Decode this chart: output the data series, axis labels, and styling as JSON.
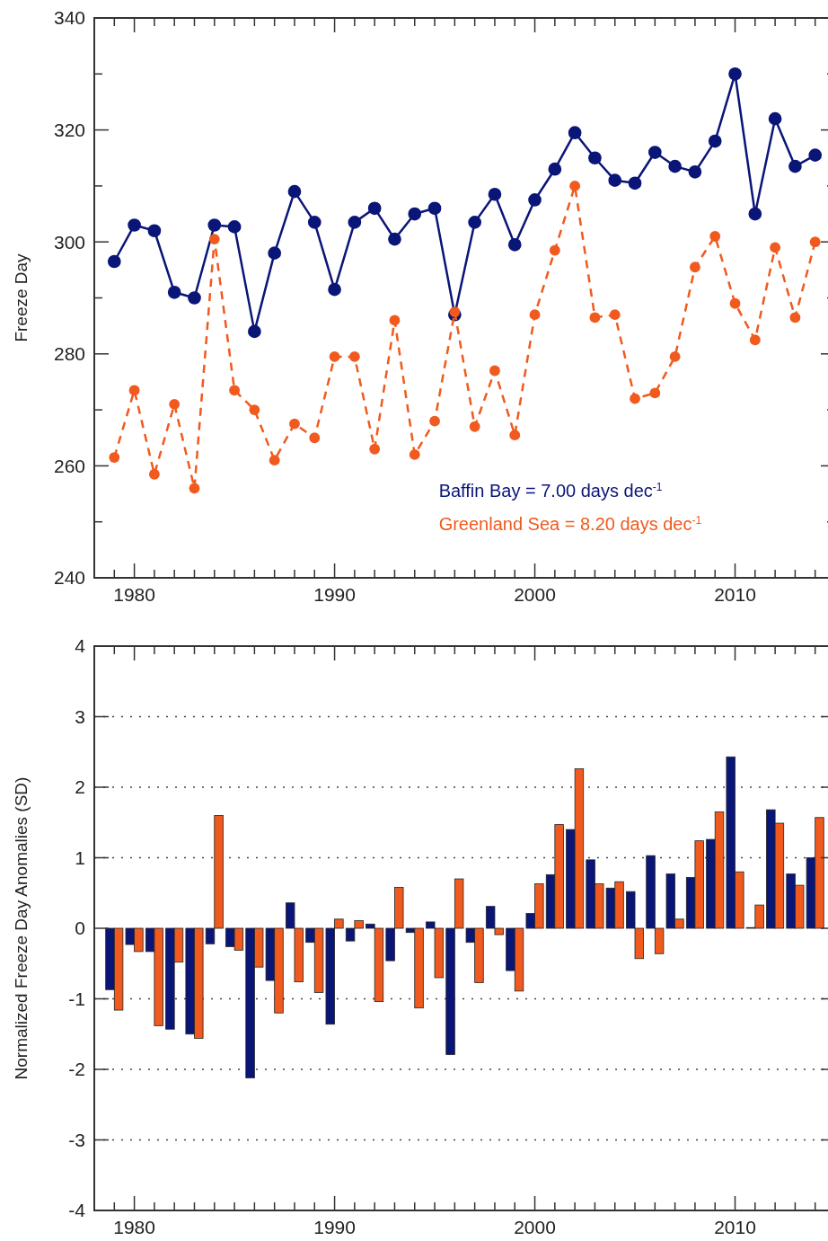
{
  "chart_data": [
    {
      "type": "line",
      "ylabel": "Freeze Day",
      "marker": "circle",
      "legend": "bottom right",
      "x": [
        1979,
        1980,
        1981,
        1982,
        1983,
        1984,
        1985,
        1986,
        1987,
        1988,
        1989,
        1990,
        1991,
        1992,
        1993,
        1994,
        1995,
        1996,
        1997,
        1998,
        1999,
        2000,
        2001,
        2002,
        2003,
        2004,
        2005,
        2006,
        2007,
        2008,
        2009,
        2010,
        2011,
        2012,
        2013,
        2014
      ],
      "series": [
        {
          "name": "Baffin Bay = 7.00 days dec$^{-1}$",
          "color": "#0a1578",
          "line_style": "solid",
          "values": [
            296.5,
            303,
            302,
            291,
            290,
            303,
            302.7,
            284,
            298,
            309,
            303.5,
            291.5,
            303.5,
            306,
            300.5,
            305,
            306,
            287,
            303.5,
            308.5,
            299.5,
            307.5,
            313,
            319.5,
            315,
            311,
            310.5,
            316,
            313.5,
            312.5,
            318,
            330,
            305,
            322,
            313.5,
            315.5
          ]
        },
        {
          "name": "Greenland Sea = 8.20 days dec$^{-1}$",
          "color": "#f05a1e",
          "line_style": "dashed",
          "values": [
            261.5,
            273.5,
            258.5,
            271,
            256,
            300.5,
            273.5,
            270,
            261,
            267.5,
            265,
            279.5,
            279.5,
            263,
            286,
            262,
            268,
            287.5,
            267,
            277,
            265.5,
            287,
            298.5,
            310,
            286.5,
            287,
            272,
            273,
            279.5,
            295.5,
            301,
            289,
            282.5,
            299,
            286.5,
            300
          ]
        }
      ],
      "xlim": [
        1978,
        2015
      ],
      "xticks": [
        {
          "value": 1978,
          "label": null
        },
        {
          "value": 1979,
          "label": null
        },
        1980,
        {
          "value": 1981,
          "label": null
        },
        {
          "value": 1982,
          "label": null
        },
        {
          "value": 1983,
          "label": null
        },
        {
          "value": 1984,
          "label": null
        },
        {
          "value": 1985,
          "label": null
        },
        {
          "value": 1986,
          "label": null
        },
        {
          "value": 1987,
          "label": null
        },
        {
          "value": 1988,
          "label": null
        },
        {
          "value": 1989,
          "label": null
        },
        1990,
        {
          "value": 1991,
          "label": null
        },
        {
          "value": 1992,
          "label": null
        },
        {
          "value": 1993,
          "label": null
        },
        {
          "value": 1994,
          "label": null
        },
        {
          "value": 1995,
          "label": null
        },
        {
          "value": 1996,
          "label": null
        },
        {
          "value": 1997,
          "label": null
        },
        {
          "value": 1998,
          "label": null
        },
        {
          "value": 1999,
          "label": null
        },
        2000,
        {
          "value": 2001,
          "label": null
        },
        {
          "value": 2002,
          "label": null
        },
        {
          "value": 2003,
          "label": null
        },
        {
          "value": 2004,
          "label": null
        },
        {
          "value": 2005,
          "label": null
        },
        {
          "value": 2006,
          "label": null
        },
        {
          "value": 2007,
          "label": null
        },
        {
          "value": 2008,
          "label": null
        },
        {
          "value": 2009,
          "label": null
        },
        2010,
        {
          "value": 2011,
          "label": null
        },
        {
          "value": 2012,
          "label": null
        },
        {
          "value": 2013,
          "label": null
        },
        {
          "value": 2014,
          "label": null
        }
      ],
      "ylim": [
        240,
        340
      ],
      "yticks": [
        240,
        {
          "value": 250,
          "label": null
        },
        260,
        {
          "value": 270,
          "label": null
        },
        280,
        {
          "value": 290,
          "label": null
        },
        300,
        {
          "value": 310,
          "label": null
        },
        320,
        {
          "value": 330,
          "label": null
        },
        340
      ]
    },
    {
      "type": "bar",
      "ylabel": "Normalized Freeze Day Anomalies (SD)",
      "x": [
        1979,
        1980,
        1981,
        1982,
        1983,
        1984,
        1985,
        1986,
        1987,
        1988,
        1989,
        1990,
        1991,
        1992,
        1993,
        1994,
        1995,
        1996,
        1997,
        1998,
        1999,
        2000,
        2001,
        2002,
        2003,
        2004,
        2005,
        2006,
        2007,
        2008,
        2009,
        2010,
        2011,
        2012,
        2013,
        2014
      ],
      "series": [
        {
          "color": "#0a1578",
          "values": [
            -0.87,
            -0.23,
            -0.33,
            -1.43,
            -1.5,
            -0.22,
            -0.26,
            -2.12,
            -0.74,
            0.36,
            -0.2,
            -1.36,
            -0.18,
            0.06,
            -0.46,
            -0.06,
            0.09,
            -1.79,
            -0.2,
            0.31,
            -0.6,
            0.21,
            0.76,
            1.4,
            0.97,
            0.57,
            0.52,
            1.03,
            0.77,
            0.72,
            1.26,
            2.43,
            0.01,
            1.68,
            0.77,
            1.0
          ]
        },
        {
          "color": "#f05a1e",
          "values": [
            -1.16,
            -0.33,
            -1.38,
            -0.48,
            -1.56,
            1.6,
            -0.31,
            -0.55,
            -1.2,
            -0.76,
            -0.91,
            0.13,
            0.11,
            -1.04,
            0.58,
            -1.13,
            -0.7,
            0.7,
            -0.77,
            -0.09,
            -0.89,
            0.63,
            1.47,
            2.26,
            0.63,
            0.66,
            -0.43,
            -0.36,
            0.13,
            1.24,
            1.65,
            0.8,
            0.33,
            1.49,
            0.61,
            1.57
          ]
        }
      ],
      "xlim": [
        1978,
        2015
      ],
      "xticks": [
        {
          "value": 1978,
          "label": null
        },
        {
          "value": 1979,
          "label": null
        },
        1980,
        {
          "value": 1981,
          "label": null
        },
        {
          "value": 1982,
          "label": null
        },
        {
          "value": 1983,
          "label": null
        },
        {
          "value": 1984,
          "label": null
        },
        {
          "value": 1985,
          "label": null
        },
        {
          "value": 1986,
          "label": null
        },
        {
          "value": 1987,
          "label": null
        },
        {
          "value": 1988,
          "label": null
        },
        {
          "value": 1989,
          "label": null
        },
        1990,
        {
          "value": 1991,
          "label": null
        },
        {
          "value": 1992,
          "label": null
        },
        {
          "value": 1993,
          "label": null
        },
        {
          "value": 1994,
          "label": null
        },
        {
          "value": 1995,
          "label": null
        },
        {
          "value": 1996,
          "label": null
        },
        {
          "value": 1997,
          "label": null
        },
        {
          "value": 1998,
          "label": null
        },
        {
          "value": 1999,
          "label": null
        },
        2000,
        {
          "value": 2001,
          "label": null
        },
        {
          "value": 2002,
          "label": null
        },
        {
          "value": 2003,
          "label": null
        },
        {
          "value": 2004,
          "label": null
        },
        {
          "value": 2005,
          "label": null
        },
        {
          "value": 2006,
          "label": null
        },
        {
          "value": 2007,
          "label": null
        },
        {
          "value": 2008,
          "label": null
        },
        {
          "value": 2009,
          "label": null
        },
        2010,
        {
          "value": 2011,
          "label": null
        },
        {
          "value": 2012,
          "label": null
        },
        {
          "value": 2013,
          "label": null
        },
        {
          "value": 2014,
          "label": null
        }
      ],
      "ylim": [
        -4,
        4
      ],
      "yticks": [
        -4,
        -3,
        -2,
        -1,
        0,
        1,
        2,
        3,
        4
      ],
      "ref_lines": [
        {
          "axis": "y",
          "value": 3,
          "line_style": "dotted"
        },
        {
          "axis": "y",
          "value": 2,
          "line_style": "dotted"
        },
        {
          "axis": "y",
          "value": 1,
          "line_style": "dotted"
        },
        {
          "axis": "y",
          "value": -1,
          "line_style": "dotted"
        },
        {
          "axis": "y",
          "value": -2,
          "line_style": "dotted"
        },
        {
          "axis": "y",
          "value": -3,
          "line_style": "dotted"
        }
      ]
    }
  ]
}
